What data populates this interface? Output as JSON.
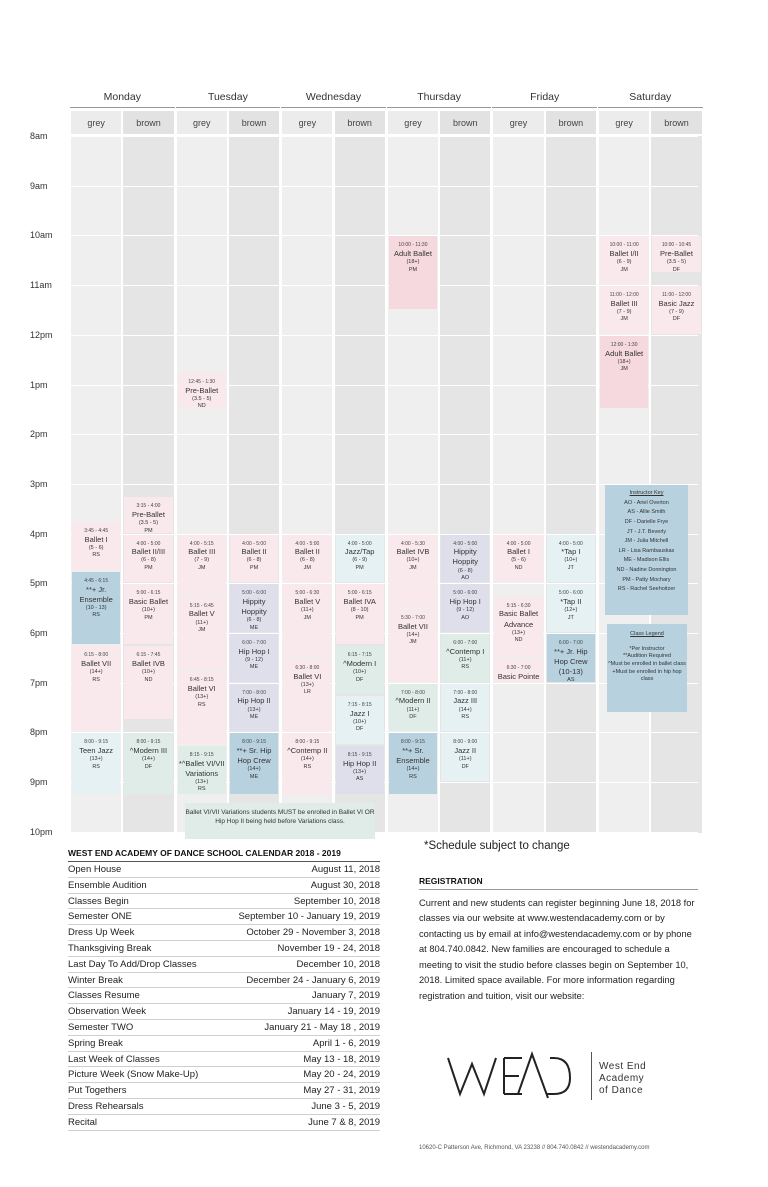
{
  "schedule": {
    "days": [
      "Monday",
      "Tuesday",
      "Wednesday",
      "Thursday",
      "Friday",
      "Saturday"
    ],
    "rooms": [
      "grey",
      "brown"
    ],
    "times": [
      "8am",
      "9am",
      "10am",
      "11am",
      "12pm",
      "1pm",
      "2pm",
      "3pm",
      "4pm",
      "5pm",
      "6pm",
      "7pm",
      "8pm",
      "9pm",
      "10pm"
    ],
    "classes": [
      {
        "day": 0,
        "room": 0,
        "time": "3:45 - 4:45",
        "name": "Ballet I",
        "age": "(5 - 6)",
        "instructor": "RS",
        "start": 15.75,
        "end": 16.75,
        "color": "lpink"
      },
      {
        "day": 0,
        "room": 0,
        "time": "4:45 - 6:15",
        "name": "**+ Jr. Ensemble",
        "age": "(10 - 13)",
        "instructor": "RS",
        "start": 16.75,
        "end": 18.25,
        "color": "blue"
      },
      {
        "day": 0,
        "room": 0,
        "time": "6:15 - 8:00",
        "name": "Ballet VII",
        "age": "(14+)",
        "instructor": "RS",
        "start": 18.25,
        "end": 20.0,
        "color": "lpink"
      },
      {
        "day": 0,
        "room": 0,
        "time": "8:00 - 9:15",
        "name": "Teen Jazz",
        "age": "(13+)",
        "instructor": "RS",
        "start": 20.0,
        "end": 21.25,
        "color": "lblue"
      },
      {
        "day": 0,
        "room": 1,
        "time": "3:15 - 4:00",
        "name": "Pre-Ballet",
        "age": "(3.5 - 5)",
        "instructor": "PM",
        "start": 15.25,
        "end": 16.0,
        "color": "lpink"
      },
      {
        "day": 0,
        "room": 1,
        "time": "4:00 - 5:00",
        "name": "Ballet II/III",
        "age": "(6 - 8)",
        "instructor": "PM",
        "start": 16.0,
        "end": 17.0,
        "color": "lpink"
      },
      {
        "day": 0,
        "room": 1,
        "time": "5:00 - 6:15",
        "name": "Basic Ballet",
        "age": "(10+)",
        "instructor": "PM",
        "start": 17.0,
        "end": 18.25,
        "color": "lpink"
      },
      {
        "day": 0,
        "room": 1,
        "time": "6:15 - 7:45",
        "name": "Ballet IVB",
        "age": "(10+)",
        "instructor": "ND",
        "start": 18.25,
        "end": 19.75,
        "color": "lpink"
      },
      {
        "day": 0,
        "room": 1,
        "time": "8:00 - 9:15",
        "name": "^Modern III",
        "age": "(14+)",
        "instructor": "DF",
        "start": 20.0,
        "end": 21.25,
        "color": "teal"
      },
      {
        "day": 1,
        "room": 0,
        "time": "12:45 - 1:30",
        "name": "Pre-Ballet",
        "age": "(3.5 - 5)",
        "instructor": "ND",
        "start": 12.75,
        "end": 13.5,
        "color": "lpink"
      },
      {
        "day": 1,
        "room": 0,
        "time": "4:00 - 5:15",
        "name": "Ballet III",
        "age": "(7 - 9)",
        "instructor": "JM",
        "start": 16.0,
        "end": 17.25,
        "color": "lpink"
      },
      {
        "day": 1,
        "room": 0,
        "time": "5:15 - 6:45",
        "name": "Ballet V",
        "age": "(11+)",
        "instructor": "JM",
        "start": 17.25,
        "end": 18.75,
        "color": "lpink"
      },
      {
        "day": 1,
        "room": 0,
        "time": "6:45 - 8:15",
        "name": "Ballet VI",
        "age": "(13+)",
        "instructor": "RS",
        "start": 18.75,
        "end": 20.25,
        "color": "lpink"
      },
      {
        "day": 1,
        "room": 0,
        "time": "8:15 - 9:15",
        "name": "*^Ballet VI/VII Variations",
        "age": "(13+)",
        "instructor": "RS",
        "start": 20.25,
        "end": 21.25,
        "color": "teal"
      },
      {
        "day": 1,
        "room": 1,
        "time": "4:00 - 5:00",
        "name": "Ballet II",
        "age": "(6 - 8)",
        "instructor": "PM",
        "start": 16.0,
        "end": 17.0,
        "color": "lpink"
      },
      {
        "day": 1,
        "room": 1,
        "time": "5:00 - 6:00",
        "name": "Hippity Hoppity",
        "age": "(6 - 8)",
        "instructor": "ME",
        "start": 17.0,
        "end": 18.0,
        "color": "lav"
      },
      {
        "day": 1,
        "room": 1,
        "time": "6:00 - 7:00",
        "name": "Hip Hop I",
        "age": "(9 - 12)",
        "instructor": "ME",
        "start": 18.0,
        "end": 19.0,
        "color": "lav"
      },
      {
        "day": 1,
        "room": 1,
        "time": "7:00 - 8:00",
        "name": "Hip Hop II",
        "age": "(13+)",
        "instructor": "ME",
        "start": 19.0,
        "end": 20.0,
        "color": "lav"
      },
      {
        "day": 1,
        "room": 1,
        "time": "8:00 - 9:15",
        "name": "**+ Sr. Hip Hop Crew",
        "age": "(14+)",
        "instructor": "ME",
        "start": 20.0,
        "end": 21.25,
        "color": "blue"
      },
      {
        "day": 2,
        "room": 0,
        "time": "4:00 - 5:00",
        "name": "Ballet II",
        "age": "(6 - 8)",
        "instructor": "JM",
        "start": 16.0,
        "end": 17.0,
        "color": "lpink"
      },
      {
        "day": 2,
        "room": 0,
        "time": "5:00 - 6:30",
        "name": "Ballet V",
        "age": "(11+)",
        "instructor": "JM",
        "start": 17.0,
        "end": 18.5,
        "color": "lpink"
      },
      {
        "day": 2,
        "room": 0,
        "time": "6:30 - 8:00",
        "name": "Ballet VI",
        "age": "(13+)",
        "instructor": "LR",
        "start": 18.5,
        "end": 20.0,
        "color": "lpink"
      },
      {
        "day": 2,
        "room": 0,
        "time": "8:00 - 9:15",
        "name": "^Contemp II",
        "age": "(14+)",
        "instructor": "RS",
        "start": 20.0,
        "end": 21.25,
        "color": "lpink"
      },
      {
        "day": 2,
        "room": 1,
        "time": "4:00 - 5:00",
        "name": "Jazz/Tap",
        "age": "(6 - 9)",
        "instructor": "PM",
        "start": 16.0,
        "end": 17.0,
        "color": "lblue"
      },
      {
        "day": 2,
        "room": 1,
        "time": "5:00 - 6:15",
        "name": "Ballet IVA",
        "age": "(8 - 10)",
        "instructor": "PM",
        "start": 17.0,
        "end": 18.25,
        "color": "lpink"
      },
      {
        "day": 2,
        "room": 1,
        "time": "6:15 - 7:15",
        "name": "^Modern I",
        "age": "(10+)",
        "instructor": "DF",
        "start": 18.25,
        "end": 19.25,
        "color": "teal"
      },
      {
        "day": 2,
        "room": 1,
        "time": "7:15 - 8:15",
        "name": "Jazz I",
        "age": "(10+)",
        "instructor": "DF",
        "start": 19.25,
        "end": 20.25,
        "color": "lblue"
      },
      {
        "day": 2,
        "room": 1,
        "time": "8:15 - 9:15",
        "name": "Hip Hop II",
        "age": "(13+)",
        "instructor": "AS",
        "start": 20.25,
        "end": 21.25,
        "color": "lav"
      },
      {
        "day": 3,
        "room": 0,
        "time": "10:00 - 11:30",
        "name": "Adult Ballet",
        "age": "(18+)",
        "instructor": "PM",
        "start": 10.0,
        "end": 11.5,
        "color": "pink"
      },
      {
        "day": 3,
        "room": 0,
        "time": "4:00 - 5:30",
        "name": "Ballet IVB",
        "age": "(10+)",
        "instructor": "JM",
        "start": 16.0,
        "end": 17.5,
        "color": "lpink"
      },
      {
        "day": 3,
        "room": 0,
        "time": "5:30 - 7:00",
        "name": "Ballet VII",
        "age": "(14+)",
        "instructor": "JM",
        "start": 17.5,
        "end": 19.0,
        "color": "lpink"
      },
      {
        "day": 3,
        "room": 0,
        "time": "7:00 - 8:00",
        "name": "^Modern II",
        "age": "(11+)",
        "instructor": "DF",
        "start": 19.0,
        "end": 20.0,
        "color": "teal"
      },
      {
        "day": 3,
        "room": 0,
        "time": "8:00 - 9:15",
        "name": "**+ Sr. Ensemble",
        "age": "(14+)",
        "instructor": "RS",
        "start": 20.0,
        "end": 21.25,
        "color": "blue"
      },
      {
        "day": 3,
        "room": 1,
        "time": "4:00 - 5:00",
        "name": "Hippity Hoppity",
        "age": "(6 - 8)",
        "instructor": "AO",
        "start": 16.0,
        "end": 17.0,
        "color": "lav"
      },
      {
        "day": 3,
        "room": 1,
        "time": "5:00 - 6:00",
        "name": "Hip Hop I",
        "age": "(9 - 12)",
        "instructor": "AO",
        "start": 17.0,
        "end": 18.0,
        "color": "lav"
      },
      {
        "day": 3,
        "room": 1,
        "time": "6:00 - 7:00",
        "name": "^Contemp I",
        "age": "(11+)",
        "instructor": "RS",
        "start": 18.0,
        "end": 19.0,
        "color": "teal"
      },
      {
        "day": 3,
        "room": 1,
        "time": "7:00 - 8:00",
        "name": "Jazz III",
        "age": "(14+)",
        "instructor": "RS",
        "start": 19.0,
        "end": 20.0,
        "color": "lblue"
      },
      {
        "day": 3,
        "room": 1,
        "time": "8:00 - 9:00",
        "name": "Jazz II",
        "age": "(11+)",
        "instructor": "DF",
        "start": 20.0,
        "end": 21.0,
        "color": "lblue"
      },
      {
        "day": 4,
        "room": 0,
        "time": "4:00 - 5:00",
        "name": "Ballet I",
        "age": "(5 - 6)",
        "instructor": "ND",
        "start": 16.0,
        "end": 17.0,
        "color": "lpink"
      },
      {
        "day": 4,
        "room": 0,
        "time": "5:15 - 6:30",
        "name": "Basic Ballet Advance",
        "age": "(13+)",
        "instructor": "ND",
        "start": 17.25,
        "end": 18.5,
        "color": "lpink"
      },
      {
        "day": 4,
        "room": 0,
        "time": "6:30 - 7:00",
        "name": "Basic Pointe (13+)",
        "age": "",
        "instructor": "ND",
        "start": 18.5,
        "end": 19.0,
        "color": "lpink"
      },
      {
        "day": 4,
        "room": 1,
        "time": "4:00 - 5:00",
        "name": "*Tap I",
        "age": "(10+)",
        "instructor": "JT",
        "start": 16.0,
        "end": 17.0,
        "color": "lblue"
      },
      {
        "day": 4,
        "room": 1,
        "time": "5:00 - 6:00",
        "name": "*Tap II",
        "age": "(12+)",
        "instructor": "JT",
        "start": 17.0,
        "end": 18.0,
        "color": "lblue"
      },
      {
        "day": 4,
        "room": 1,
        "time": "6:00 - 7:00",
        "name": "**+ Jr. Hip Hop Crew (10-13)",
        "age": "",
        "instructor": "AS",
        "start": 18.0,
        "end": 19.0,
        "color": "blue"
      },
      {
        "day": 5,
        "room": 0,
        "time": "10:00 - 11:00",
        "name": "Ballet I/II",
        "age": "(6 - 9)",
        "instructor": "JM",
        "start": 10.0,
        "end": 11.0,
        "color": "lpink"
      },
      {
        "day": 5,
        "room": 0,
        "time": "11:00 - 12:00",
        "name": "Ballet III",
        "age": "(7 - 9)",
        "instructor": "JM",
        "start": 11.0,
        "end": 12.0,
        "color": "lpink"
      },
      {
        "day": 5,
        "room": 0,
        "time": "12:00 - 1:30",
        "name": "Adult Ballet",
        "age": "(18+)",
        "instructor": "JM",
        "start": 12.0,
        "end": 13.5,
        "color": "pink"
      },
      {
        "day": 5,
        "room": 1,
        "time": "10:00 - 10:45",
        "name": "Pre-Ballet",
        "age": "(3.5 - 5)",
        "instructor": "DF",
        "start": 10.0,
        "end": 10.75,
        "color": "lpink"
      },
      {
        "day": 5,
        "room": 1,
        "time": "11:00 - 12:00",
        "name": "Basic Jazz",
        "age": "(7 - 9)",
        "instructor": "DF",
        "start": 11.0,
        "end": 12.0,
        "color": "lpink"
      }
    ],
    "variations_note": "Ballet VI/VII Variations students MUST be enrolled in Ballet VI OR Hip Hop II being held before Variations class.",
    "instructor_key": {
      "title": "Instructor Key",
      "items": [
        "AO - Ariel Overton",
        "AS - Allie Smith",
        "DF - Darielle Frye",
        "JT - J.T. Beverly",
        "JM - Julia Mitchell",
        "LR - Lisa Rambauskas",
        "ME - Madison Ellis",
        "ND - Nadine Donnington",
        "PM - Patty Mochary",
        "RS - Rachel Seehoitzer"
      ]
    },
    "class_legend": {
      "title": "Class Legend",
      "items": [
        "*Per Instructor",
        "**Audition Required",
        "^Must be enrolled in ballet class",
        "+Must be enrolled in hip hop class"
      ]
    }
  },
  "subject_note": "*Schedule subject to change",
  "calendar": {
    "title": "WEST END ACADEMY OF DANCE SCHOOL CALENDAR 2018 - 2019",
    "rows": [
      {
        "event": "Open House",
        "date": "August 11, 2018"
      },
      {
        "event": "Ensemble Audition",
        "date": "August 30, 2018"
      },
      {
        "event": "Classes Begin",
        "date": "September 10, 2018"
      },
      {
        "event": "Semester ONE",
        "date": "September 10 - January 19, 2019"
      },
      {
        "event": "Dress Up Week",
        "date": "October 29 - November 3, 2018"
      },
      {
        "event": "Thanksgiving Break",
        "date": "November 19 - 24, 2018"
      },
      {
        "event": "Last Day To Add/Drop Classes",
        "date": "December 10, 2018"
      },
      {
        "event": "Winter Break",
        "date": "December 24 - January 6, 2019"
      },
      {
        "event": "Classes Resume",
        "date": "January 7, 2019"
      },
      {
        "event": "Observation Week",
        "date": "January 14 - 19, 2019"
      },
      {
        "event": "Semester TWO",
        "date": "January 21 - May 18 , 2019"
      },
      {
        "event": "Spring Break",
        "date": "April 1 - 6, 2019"
      },
      {
        "event": "Last Week of Classes",
        "date": "May 13 - 18, 2019"
      },
      {
        "event": "Picture Week (Snow Make-Up)",
        "date": "May 20 - 24, 2019"
      },
      {
        "event": "Put Togethers",
        "date": "May 27 - 31, 2019"
      },
      {
        "event": "Dress Rehearsals",
        "date": "June 3 - 5, 2019"
      },
      {
        "event": "Recital",
        "date": "June 7 & 8, 2019"
      }
    ]
  },
  "registration": {
    "title": "REGISTRATION",
    "body": "Current and new students can register beginning June 18, 2018 for classes via our website at www.westendacademy.com or by contacting us by email at info@westendacademy.com or by phone at 804.740.0842. New families are encouraged to schedule a meeting to visit the studio before classes begin on September 10, 2018. Limited space available. For more information regarding registration and tuition, visit our website:"
  },
  "logo": {
    "mark": "WEAD",
    "lines": [
      "West End",
      "Academy",
      "of Dance"
    ]
  },
  "footer": "10620-C Patterson Ave, Richmond, VA 23238  //  804.740.0842  //  westendacademy.com"
}
